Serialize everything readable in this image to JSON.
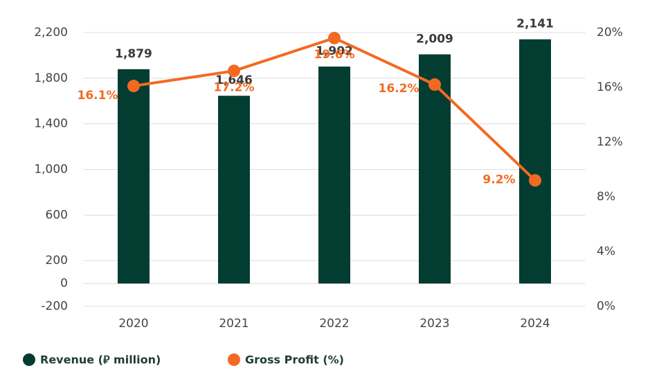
{
  "chart_data": {
    "type": "bar",
    "categories": [
      "2020",
      "2021",
      "2022",
      "2023",
      "2024"
    ],
    "series": [
      {
        "name": "Revenue (⃁ million)",
        "color": "#033d32",
        "type": "bar",
        "values": [
          1879,
          1646,
          1902,
          2009,
          2141
        ],
        "value_labels": [
          "1,879",
          "1,646",
          "1,902",
          "2,009",
          "2,141"
        ]
      },
      {
        "name": "Gross Profit (%)",
        "color": "#f26a21",
        "type": "line",
        "axis": "y2",
        "values": [
          16.1,
          17.2,
          19.6,
          16.2,
          9.2
        ],
        "value_labels": [
          "16.1%",
          "17.2%",
          "19.6%",
          "16.2%",
          "9.2%"
        ]
      }
    ],
    "ylim": [
      -200,
      2200
    ],
    "yticks": [
      -200,
      0,
      200,
      600,
      {
        "value": 1000,
        "label": "1,000"
      },
      {
        "value": 1400,
        "label": "1,400"
      },
      {
        "value": 1800,
        "label": "1,800"
      },
      {
        "value": 2200,
        "label": "2,200"
      }
    ],
    "y2lim": [
      0,
      20
    ],
    "y2ticks": [
      {
        "value": 0,
        "label": "0%"
      },
      {
        "value": 4,
        "label": "4%"
      },
      {
        "value": 8,
        "label": "8%"
      },
      {
        "value": 12,
        "label": "12%"
      },
      {
        "value": 16,
        "label": "16%"
      },
      {
        "value": 20,
        "label": "20%"
      }
    ],
    "grid": true,
    "legend": "bottom-left"
  }
}
